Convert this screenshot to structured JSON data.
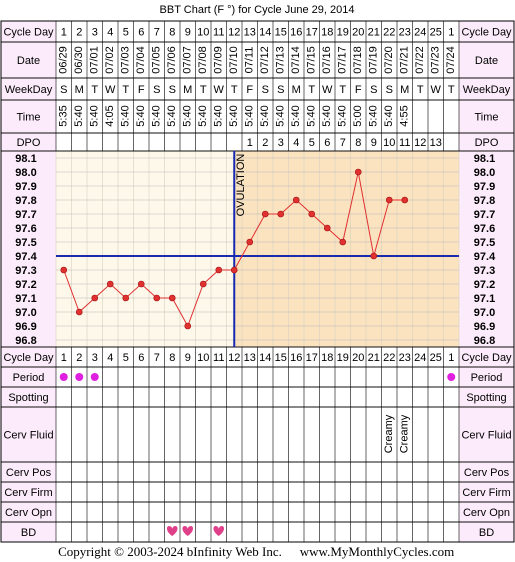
{
  "chart_data": {
    "type": "line",
    "title": "BBT Chart (F °) for Cycle June 29, 2014",
    "row_labels": {
      "cycle_day": "Cycle Day",
      "date": "Date",
      "weekday": "WeekDay",
      "time": "Time",
      "dpo": "DPO",
      "period": "Period",
      "spotting": "Spotting",
      "cerv_fluid": "Cerv Fluid",
      "cerv_pos": "Cerv Pos",
      "cerv_firm": "Cerv Firm",
      "cerv_opn": "Cerv Opn",
      "bd": "BD"
    },
    "cycle_days": [
      1,
      2,
      3,
      4,
      5,
      6,
      7,
      8,
      9,
      10,
      11,
      12,
      13,
      14,
      15,
      16,
      17,
      18,
      19,
      20,
      21,
      22,
      23,
      24,
      25,
      1
    ],
    "categories": [
      "06/29",
      "06/30",
      "07/01",
      "07/02",
      "07/03",
      "07/04",
      "07/05",
      "07/06",
      "07/07",
      "07/08",
      "07/09",
      "07/10",
      "07/11",
      "07/12",
      "07/13",
      "07/14",
      "07/15",
      "07/16",
      "07/17",
      "07/18",
      "07/19",
      "07/20",
      "07/21",
      "07/22",
      "07/23",
      "07/24"
    ],
    "weekdays": [
      "S",
      "M",
      "T",
      "W",
      "T",
      "F",
      "S",
      "S",
      "M",
      "T",
      "W",
      "T",
      "F",
      "S",
      "S",
      "M",
      "T",
      "W",
      "T",
      "F",
      "S",
      "S",
      "M",
      "T",
      "W",
      "T"
    ],
    "times": [
      "5:35",
      "5:40",
      "5:40",
      "4:05",
      "5:40",
      "5:40",
      "5:40",
      "5:40",
      "5:40",
      "5:40",
      "5:40",
      "5:40",
      "5:40",
      "5:40",
      "5:40",
      "5:40",
      "5:40",
      "5:40",
      "5:40",
      "5:00",
      "5:40",
      "5:40",
      "4:55",
      null,
      null,
      null
    ],
    "dpo": [
      null,
      null,
      null,
      null,
      null,
      null,
      null,
      null,
      null,
      null,
      null,
      null,
      1,
      2,
      3,
      4,
      5,
      6,
      7,
      8,
      9,
      10,
      11,
      12,
      13,
      null
    ],
    "values": [
      97.3,
      97.0,
      97.1,
      97.2,
      97.1,
      97.2,
      97.1,
      97.1,
      96.9,
      97.2,
      97.3,
      97.3,
      97.5,
      97.7,
      97.7,
      97.8,
      97.7,
      97.6,
      97.5,
      98.0,
      97.4,
      97.8,
      97.8,
      null,
      null,
      null
    ],
    "color": "#e03030",
    "ylim": [
      96.75,
      98.15
    ],
    "yticks": [
      98.1,
      {
        "value": 98.0,
        "label": "98.0"
      },
      97.9,
      97.8,
      97.7,
      97.6,
      97.5,
      97.4,
      97.3,
      97.2,
      97.1,
      {
        "value": 97.0,
        "label": "97.0"
      },
      96.9,
      96.8
    ],
    "grid": true,
    "coverline": 97.4,
    "coverline_color": "#1a2ab0",
    "ovulation_day": 12,
    "ovulation_label": "OVULATION",
    "period": [
      true,
      true,
      true,
      false,
      false,
      false,
      false,
      false,
      false,
      false,
      false,
      false,
      false,
      false,
      false,
      false,
      false,
      false,
      false,
      false,
      false,
      false,
      false,
      false,
      false,
      true
    ],
    "period_color": "#e020e0",
    "cerv_fluid": [
      null,
      null,
      null,
      null,
      null,
      null,
      null,
      null,
      null,
      null,
      null,
      null,
      null,
      null,
      null,
      null,
      null,
      null,
      null,
      null,
      null,
      "Creamy",
      "Creamy",
      null,
      null,
      null
    ],
    "bd": [
      false,
      false,
      false,
      false,
      false,
      false,
      false,
      true,
      true,
      false,
      true,
      false,
      false,
      false,
      false,
      false,
      false,
      false,
      false,
      false,
      false,
      false,
      false,
      false,
      false,
      false
    ],
    "bd_color": "#e0408a"
  },
  "footer": {
    "copyright": "Copyright © 2003-2024 bInfinity Web Inc.",
    "website": "www.MyMonthlyCycles.com"
  }
}
